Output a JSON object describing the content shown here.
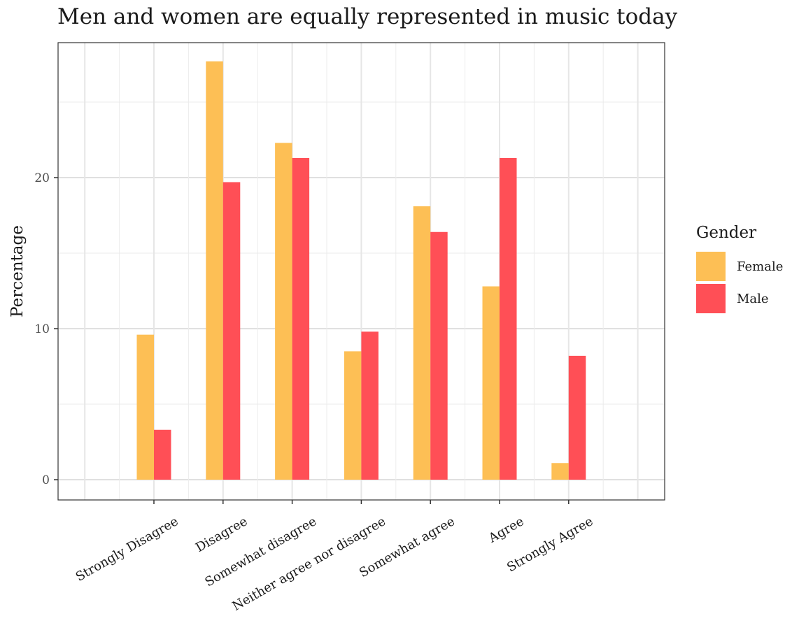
{
  "chart_data": {
    "type": "bar",
    "title": "Men and women are equally represented in music today",
    "xlabel": "",
    "ylabel": "Percentage",
    "categories": [
      "Strongly Disagree",
      "Disagree",
      "Somewhat disagree",
      "Neither agree nor disagree",
      "Somewhat agree",
      "Agree",
      "Strongly Agree"
    ],
    "series": [
      {
        "name": "Female",
        "color": "#FDBF55",
        "values": [
          9.6,
          27.7,
          22.3,
          8.5,
          18.1,
          12.8,
          1.1
        ]
      },
      {
        "name": "Male",
        "color": "#FF4F56",
        "values": [
          3.3,
          19.7,
          21.3,
          9.8,
          16.4,
          21.3,
          8.2
        ]
      }
    ],
    "ylim": [
      -1.3,
      29.0
    ],
    "y_ticks": [
      0,
      10,
      20
    ],
    "legend": {
      "title": "Gender",
      "position": "right"
    },
    "grid": true
  }
}
